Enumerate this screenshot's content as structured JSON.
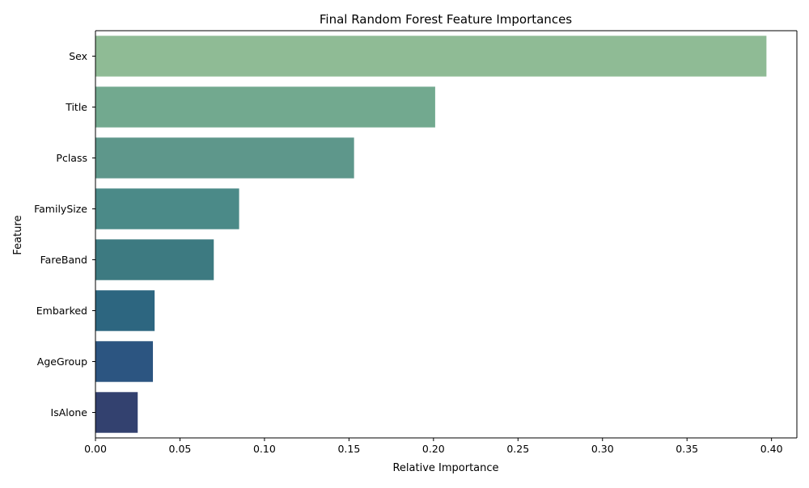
{
  "chart_data": {
    "type": "bar",
    "orientation": "horizontal",
    "title": "Final Random Forest Feature Importances",
    "xlabel": "Relative Importance",
    "ylabel": "Feature",
    "categories": [
      "Sex",
      "Title",
      "Pclass",
      "FamilySize",
      "FareBand",
      "Embarked",
      "AgeGroup",
      "IsAlone"
    ],
    "values": [
      0.397,
      0.201,
      0.153,
      0.085,
      0.07,
      0.035,
      0.034,
      0.025
    ],
    "xlim": [
      0.0,
      0.415
    ],
    "xticks": [
      "0.00",
      "0.05",
      "0.10",
      "0.15",
      "0.20",
      "0.25",
      "0.30",
      "0.35",
      "0.40"
    ],
    "grid": false,
    "bar_colors": [
      "#8fbb95",
      "#72a98f",
      "#5e978b",
      "#4b8a88",
      "#3d7a81",
      "#2d6680",
      "#2c5581",
      "#33416f"
    ]
  }
}
